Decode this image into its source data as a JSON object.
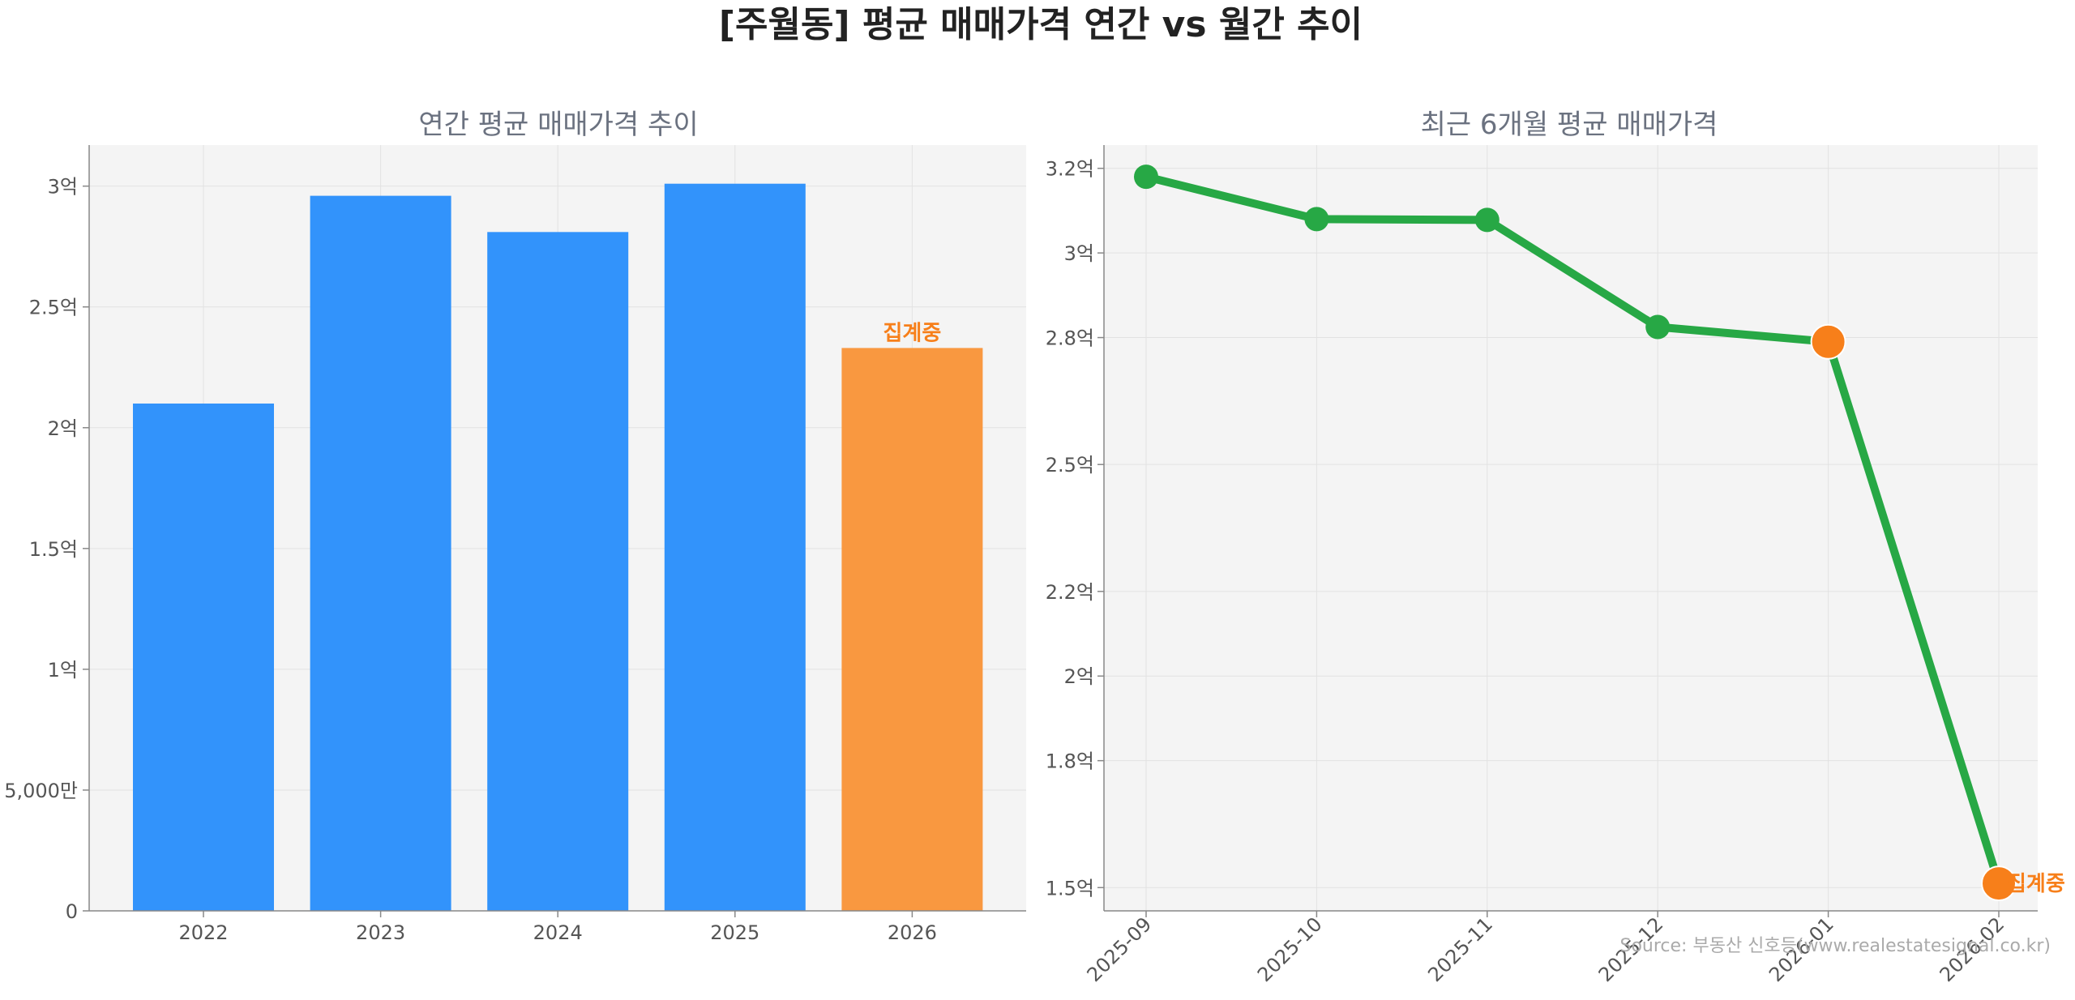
{
  "title": "[주월동] 평균 매매가격 연간 vs 월간 추이",
  "source": "Source: 부동산 신호등(www.realestatesignal.co.kr)",
  "colors": {
    "bar": "#3293fb",
    "bar_highlight": "#f99840",
    "line": "#27a845",
    "marker_highlight": "#f77f1a",
    "note": "#f77f1a",
    "panel_bg": "#f4f4f4",
    "grid": "#e2e2e2"
  },
  "chart_data": [
    {
      "type": "bar",
      "title": "연간 평균 매매가격 추이",
      "categories": [
        "2022",
        "2023",
        "2024",
        "2025",
        "2026"
      ],
      "values": [
        21000,
        29600,
        28100,
        30100,
        23300
      ],
      "highlight_index": 4,
      "highlight_label": "집계중",
      "ylim": [
        0,
        31700
      ],
      "yticks": [
        0,
        5000,
        10000,
        15000,
        20000,
        25000,
        30000
      ],
      "ytick_labels": [
        "0",
        "5,000만",
        "1억",
        "1.5억",
        "2억",
        "2.5억",
        "3억"
      ],
      "grid": true
    },
    {
      "type": "line",
      "title": "최근 6개월 평균 매매가격",
      "x": [
        "2025-09",
        "2025-10",
        "2025-11",
        "2025-12",
        "2026-01",
        "2026-02"
      ],
      "values": [
        31800,
        30800,
        30780,
        28250,
        27900,
        15100
      ],
      "highlight_indices": [
        4,
        5
      ],
      "end_label": "집계중",
      "ylim": [
        14450,
        32550
      ],
      "yticks": [
        15000,
        18000,
        20000,
        22000,
        25000,
        28000,
        30000,
        32000
      ],
      "ytick_labels": [
        "1.5억",
        "1.8억",
        "2억",
        "2.2억",
        "2.5억",
        "2.8억",
        "3억",
        "3.2억"
      ],
      "grid": true
    }
  ]
}
